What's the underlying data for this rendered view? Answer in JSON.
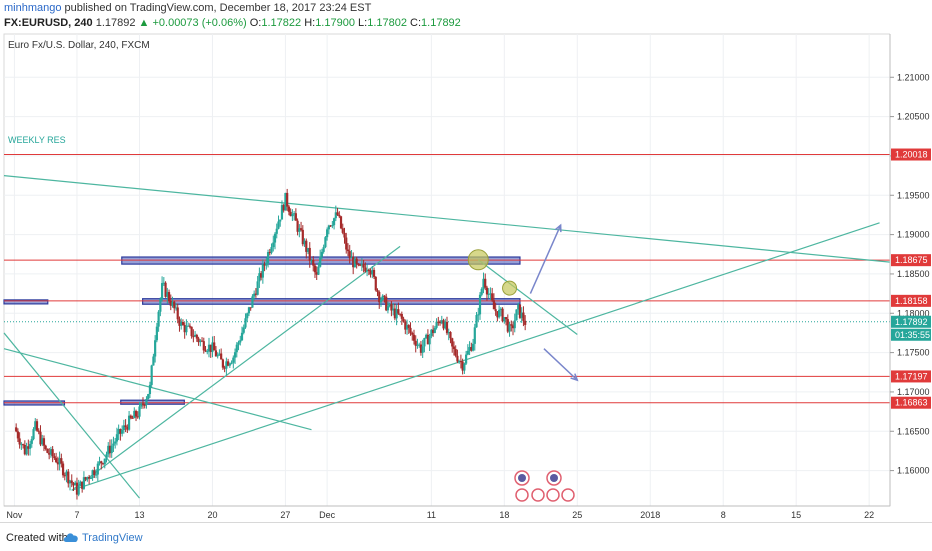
{
  "header": {
    "user": "minhmango",
    "published_text": "published on TradingView.com, December 18, 2017 23:24 EST",
    "symbol": "FX:EURUSD, 240",
    "last": "1.17892",
    "change": "▲ +0.00073 (+0.06%)",
    "o_label": "O:",
    "o_value": "1.17822",
    "h_label": "H:",
    "h_value": "1.17900",
    "l_label": "L:",
    "l_value": "1.17802",
    "c_label": "C:",
    "c_value": "1.17892"
  },
  "chart_data": {
    "type": "candlestick",
    "title": "Euro Fx/U.S. Dollar, 240, FXCM",
    "x_ticks": [
      {
        "label": "Nov",
        "x": 0
      },
      {
        "label": "7",
        "x": 6
      },
      {
        "label": "13",
        "x": 12
      },
      {
        "label": "20",
        "x": 19
      },
      {
        "label": "27",
        "x": 26
      },
      {
        "label": "Dec",
        "x": 30
      },
      {
        "label": "11",
        "x": 40
      },
      {
        "label": "18",
        "x": 47
      },
      {
        "label": "25",
        "x": 54
      },
      {
        "label": "2018",
        "x": 61
      },
      {
        "label": "8",
        "x": 68
      },
      {
        "label": "15",
        "x": 75
      },
      {
        "label": "22",
        "x": 82
      }
    ],
    "xlim": [
      -1,
      84
    ],
    "ylim": [
      1.1555,
      1.2155
    ],
    "y_ticks": [
      1.16,
      1.165,
      1.17,
      1.175,
      1.18,
      1.185,
      1.19,
      1.195,
      1.2,
      1.205,
      1.21
    ],
    "y_tick_labels": [
      "1.16000",
      "1.16500",
      "1.17000",
      "1.17500",
      "1.18000",
      "1.18500",
      "1.19000",
      "1.19500",
      "1.20000",
      "1.20500",
      "1.21000"
    ],
    "price_path": [
      [
        0,
        1.1655
      ],
      [
        1,
        1.1625
      ],
      [
        2,
        1.1655
      ],
      [
        3,
        1.1625
      ],
      [
        4,
        1.1615
      ],
      [
        5,
        1.1595
      ],
      [
        6,
        1.1575
      ],
      [
        7,
        1.1592
      ],
      [
        8,
        1.1605
      ],
      [
        9,
        1.1625
      ],
      [
        10,
        1.1645
      ],
      [
        11,
        1.1662
      ],
      [
        12,
        1.1675
      ],
      [
        13,
        1.1705
      ],
      [
        13.6,
        1.1785
      ],
      [
        14.2,
        1.1835
      ],
      [
        15,
        1.1815
      ],
      [
        16,
        1.1785
      ],
      [
        17,
        1.1775
      ],
      [
        18,
        1.1762
      ],
      [
        19,
        1.1755
      ],
      [
        20,
        1.1735
      ],
      [
        21,
        1.1745
      ],
      [
        22,
        1.1782
      ],
      [
        23,
        1.1825
      ],
      [
        24,
        1.1862
      ],
      [
        25,
        1.1905
      ],
      [
        26,
        1.1945
      ],
      [
        27,
        1.1915
      ],
      [
        28,
        1.1882
      ],
      [
        29,
        1.1845
      ],
      [
        30,
        1.1912
      ],
      [
        31,
        1.1925
      ],
      [
        32,
        1.1875
      ],
      [
        33,
        1.1855
      ],
      [
        34,
        1.1862
      ],
      [
        35,
        1.1822
      ],
      [
        36,
        1.1805
      ],
      [
        37,
        1.1795
      ],
      [
        38,
        1.1775
      ],
      [
        39,
        1.1755
      ],
      [
        40,
        1.1775
      ],
      [
        41,
        1.1795
      ],
      [
        42,
        1.1755
      ],
      [
        43,
        1.1735
      ],
      [
        44,
        1.1765
      ],
      [
        45,
        1.1845
      ],
      [
        46,
        1.1805
      ],
      [
        47,
        1.1795
      ],
      [
        47.6,
        1.1775
      ],
      [
        48.3,
        1.1805
      ],
      [
        49,
        1.1789
      ]
    ],
    "last_price": 1.17892,
    "last_label": "1.17892",
    "countdown": "01:35:55",
    "horizontal_levels": [
      {
        "value": 1.20018,
        "label": "1.20018",
        "color": "#e03a3a"
      },
      {
        "value": 1.18675,
        "label": "1.18675",
        "color": "#e03a3a"
      },
      {
        "value": 1.18158,
        "label": "1.18158",
        "color": "#e03a3a"
      },
      {
        "value": 1.17197,
        "label": "1.17197",
        "color": "#e03a3a"
      },
      {
        "value": 1.16863,
        "label": "1.16863",
        "color": "#e03a3a"
      }
    ],
    "level_note": "WEEKLY RES",
    "zones": [
      {
        "x0": 10.3,
        "x1": 48.5,
        "y0": 1.18625,
        "y1": 1.18715
      },
      {
        "x0": 12.3,
        "x1": 48.5,
        "y0": 1.18115,
        "y1": 1.18185
      },
      {
        "x0": -1,
        "x1": 3.2,
        "y0": 1.1813,
        "y1": 1.1817
      },
      {
        "x0": -1,
        "x1": 4.8,
        "y0": 1.16845,
        "y1": 1.16885
      },
      {
        "x0": 10.2,
        "x1": 16.3,
        "y0": 1.16855,
        "y1": 1.16895
      }
    ],
    "trendlines": [
      [
        [
          -1,
          1.1975
        ],
        [
          84,
          1.1865
        ]
      ],
      [
        [
          5.5,
          1.1575
        ],
        [
          83,
          1.1915
        ]
      ],
      [
        [
          5.5,
          1.1575
        ],
        [
          37,
          1.1885
        ]
      ],
      [
        [
          -1,
          1.1775
        ],
        [
          12,
          1.1565
        ]
      ],
      [
        [
          -1,
          1.1755
        ],
        [
          28.5,
          1.1652
        ]
      ],
      [
        [
          44.5,
          1.1868
        ],
        [
          54,
          1.1773
        ]
      ]
    ],
    "circles": [
      {
        "x": 44.5,
        "y": 1.1868,
        "r": 10
      },
      {
        "x": 47.5,
        "y": 1.1832,
        "r": 7
      }
    ],
    "arrows": [
      [
        [
          49.5,
          1.1825
        ],
        [
          52.4,
          1.1912
        ]
      ],
      [
        [
          50.8,
          1.1755
        ],
        [
          54,
          1.1715
        ]
      ]
    ],
    "colors": {
      "up": "#26a69a",
      "down": "#a52a2a",
      "level": "#e03a3a",
      "zone": "#3f51b5",
      "trend": "#4db6a0",
      "arrow": "#7986cb",
      "circle": "#c6c85a"
    }
  },
  "footer": {
    "created_with": "Created with",
    "brand": "TradingView"
  }
}
